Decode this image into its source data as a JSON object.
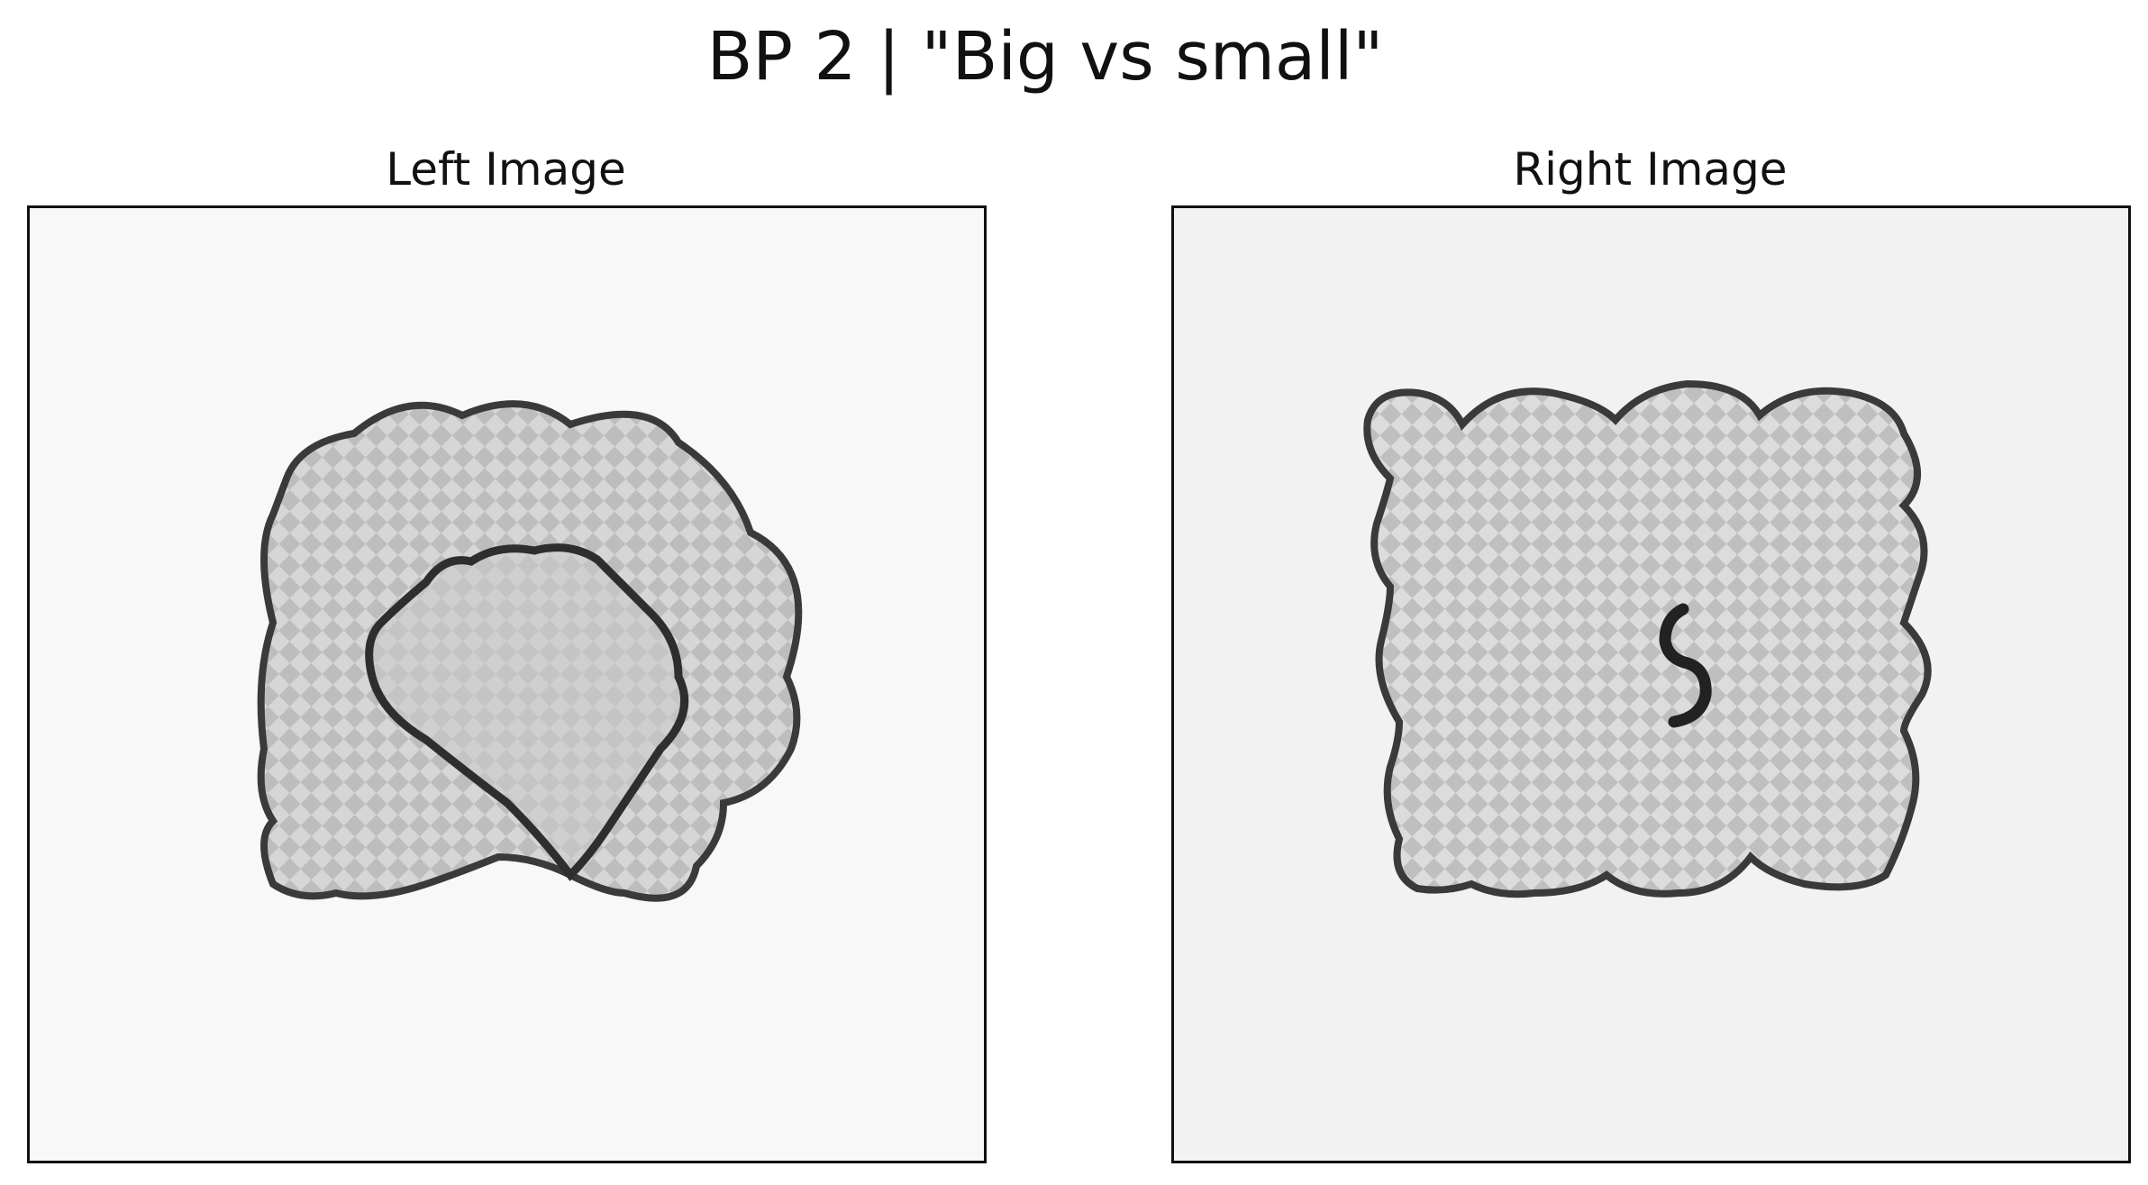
{
  "figure": {
    "title": "BP 2 | \"Big vs small\"",
    "left_panel": {
      "title": "Left Image"
    },
    "right_panel": {
      "title": "Right Image"
    }
  },
  "colors": {
    "background": "#ffffff",
    "axes_border": "#111111",
    "shape_outline": "#3a3a3a",
    "shape_fill": "#cfcfcf",
    "left_image_background": "#f8f8f8",
    "right_image_background": "#f2f2f2"
  }
}
